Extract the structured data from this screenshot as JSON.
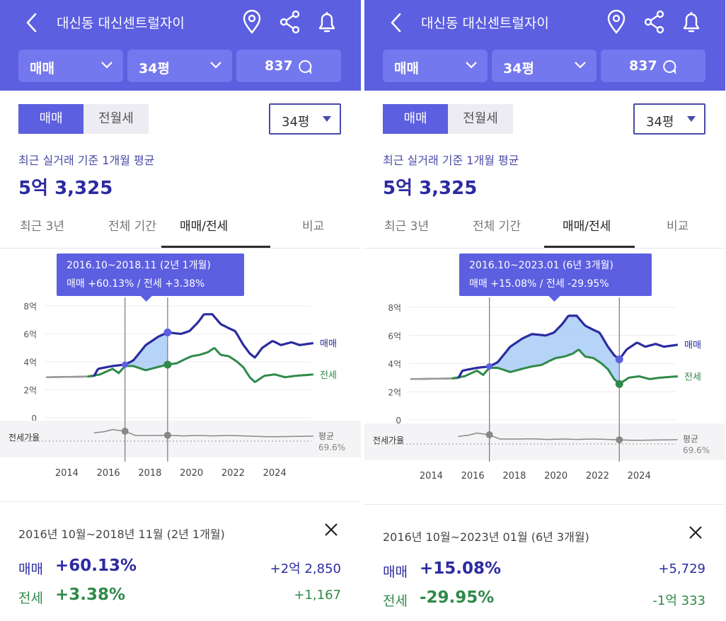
{
  "panels": [
    {
      "header": {
        "title": "대신동 대신센트럴자이"
      },
      "filters": {
        "type": "매매",
        "area": "34평",
        "comments": "837"
      },
      "segment": {
        "sale": "매매",
        "rent": "전월세"
      },
      "area_select": "34평",
      "summary": {
        "caption": "최근 실거래 기준 1개월 평균",
        "price": "5억 3,325"
      },
      "tabs": [
        "최근 3년",
        "전체 기간",
        "매매/전세",
        "비교"
      ],
      "active_tab": "매매/전세",
      "tooltip": {
        "range": "2016.10~2018.11 (2년 1개월)",
        "detail": "매매 +60.13%  /  전세 +3.38%"
      },
      "bottom": {
        "range": "2016년 10월~2018년 11월 (2년 1개월)",
        "sale_label": "매매",
        "sale_pct": "+60.13%",
        "sale_amount": "+2억 2,850",
        "jeonse_label": "전세",
        "jeonse_pct": "+3.38%",
        "jeonse_amount": "+1,167"
      },
      "chart_data": {
        "type": "line",
        "y_labels": [
          "8억",
          "6억",
          "4억",
          "2억",
          "0"
        ],
        "x_labels": [
          "2014",
          "2016",
          "2018",
          "2020",
          "2022",
          "2024"
        ],
        "series_labels": {
          "sale": "매매",
          "jeonse": "전세"
        },
        "ratio_label": "전세가율",
        "avg_label": "평균",
        "avg_value": "69.6%",
        "selection": {
          "start": 2016.8,
          "end": 2018.85
        },
        "ylim": [
          0,
          8
        ],
        "xlim": [
          2012.9,
          2026.5
        ]
      }
    },
    {
      "header": {
        "title": "대신동 대신센트럴자이"
      },
      "filters": {
        "type": "매매",
        "area": "34평",
        "comments": "837"
      },
      "segment": {
        "sale": "매매",
        "rent": "전월세"
      },
      "area_select": "34평",
      "summary": {
        "caption": "최근 실거래 기준 1개월 평균",
        "price": "5억 3,325"
      },
      "tabs": [
        "최근 3년",
        "전체 기간",
        "매매/전세",
        "비교"
      ],
      "active_tab": "매매/전세",
      "tooltip": {
        "range": "2016.10~2023.01 (6년 3개월)",
        "detail": "매매 +15.08%  /  전세 -29.95%"
      },
      "bottom": {
        "range": "2016년 10월~2023년 01월 (6년 3개월)",
        "sale_label": "매매",
        "sale_pct": "+15.08%",
        "sale_amount": "+5,729",
        "jeonse_label": "전세",
        "jeonse_pct": "-29.95%",
        "jeonse_amount": "-1억 333"
      },
      "chart_data": {
        "type": "line",
        "y_labels": [
          "8억",
          "6억",
          "4억",
          "2억",
          "0"
        ],
        "x_labels": [
          "2014",
          "2016",
          "2018",
          "2020",
          "2022",
          "2024"
        ],
        "series_labels": {
          "sale": "매매",
          "jeonse": "전세"
        },
        "ratio_label": "전세가율",
        "avg_label": "평균",
        "avg_value": "69.6%",
        "selection": {
          "start": 2016.8,
          "end": 2023.05
        },
        "ylim": [
          0,
          8
        ],
        "xlim": [
          2012.9,
          2026.5
        ]
      }
    }
  ],
  "colors": {
    "accent": "#5c5fe0",
    "sale": "#2b2ba0",
    "jeonse": "#2f8a4a",
    "ratio": "#888888"
  }
}
